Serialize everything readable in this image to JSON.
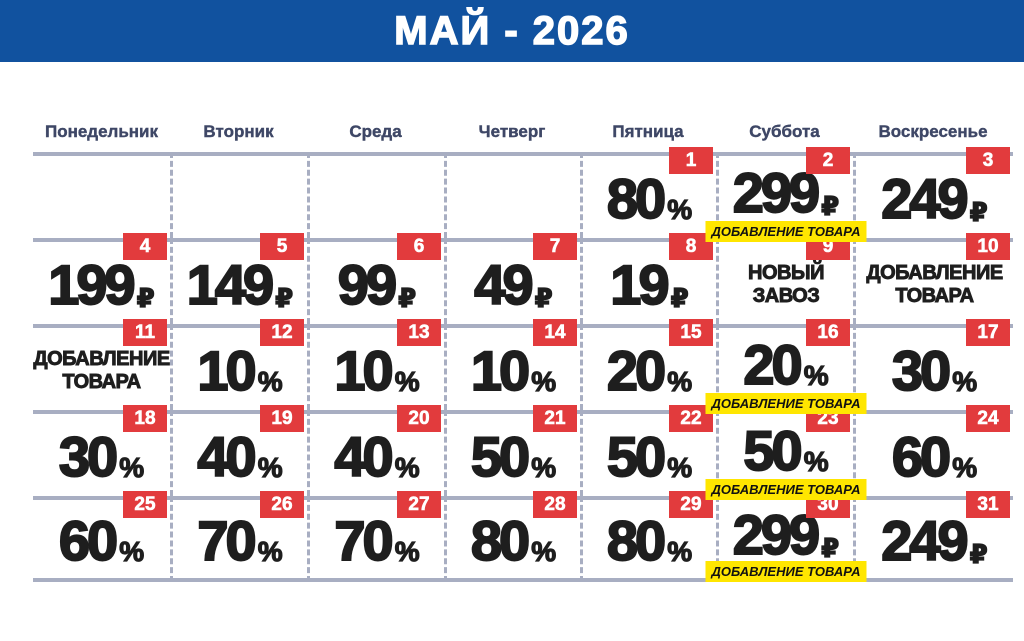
{
  "header": {
    "title": "МАЙ - 2026"
  },
  "weekdays": [
    "Понедельник",
    "Вторник",
    "Среда",
    "Четверг",
    "Пятница",
    "Суббота",
    "Воскресенье"
  ],
  "calendar": {
    "rows": [
      [
        null,
        null,
        null,
        null,
        {
          "day": 1,
          "value": "80",
          "suffix": "%"
        },
        {
          "day": 2,
          "value": "299",
          "suffix": "₽",
          "tag": "ДОБАВЛЕНИЕ ТОВАРА"
        },
        {
          "day": 3,
          "value": "249",
          "suffix": "₽"
        }
      ],
      [
        {
          "day": 4,
          "value": "199",
          "suffix": "₽"
        },
        {
          "day": 5,
          "value": "149",
          "suffix": "₽"
        },
        {
          "day": 6,
          "value": "99",
          "suffix": "₽"
        },
        {
          "day": 7,
          "value": "49",
          "suffix": "₽"
        },
        {
          "day": 8,
          "value": "19",
          "suffix": "₽"
        },
        {
          "day": 9,
          "text": "НОВЫЙ ЗАВОЗ"
        },
        {
          "day": 10,
          "text": "ДОБАВЛЕНИЕ ТОВАРА"
        }
      ],
      [
        {
          "day": 11,
          "text": "ДОБАВЛЕНИЕ ТОВАРА"
        },
        {
          "day": 12,
          "value": "10",
          "suffix": "%"
        },
        {
          "day": 13,
          "value": "10",
          "suffix": "%"
        },
        {
          "day": 14,
          "value": "10",
          "suffix": "%"
        },
        {
          "day": 15,
          "value": "20",
          "suffix": "%"
        },
        {
          "day": 16,
          "value": "20",
          "suffix": "%",
          "tag": "ДОБАВЛЕНИЕ ТОВАРА"
        },
        {
          "day": 17,
          "value": "30",
          "suffix": "%"
        }
      ],
      [
        {
          "day": 18,
          "value": "30",
          "suffix": "%"
        },
        {
          "day": 19,
          "value": "40",
          "suffix": "%"
        },
        {
          "day": 20,
          "value": "40",
          "suffix": "%"
        },
        {
          "day": 21,
          "value": "50",
          "suffix": "%"
        },
        {
          "day": 22,
          "value": "50",
          "suffix": "%"
        },
        {
          "day": 23,
          "value": "50",
          "suffix": "%",
          "tag": "ДОБАВЛЕНИЕ ТОВАРА"
        },
        {
          "day": 24,
          "value": "60",
          "suffix": "%"
        }
      ],
      [
        {
          "day": 25,
          "value": "60",
          "suffix": "%"
        },
        {
          "day": 26,
          "value": "70",
          "suffix": "%"
        },
        {
          "day": 27,
          "value": "70",
          "suffix": "%"
        },
        {
          "day": 28,
          "value": "80",
          "suffix": "%"
        },
        {
          "day": 29,
          "value": "80",
          "suffix": "%"
        },
        {
          "day": 30,
          "value": "299",
          "suffix": "₽",
          "tag": "ДОБАВЛЕНИЕ ТОВАРА"
        },
        {
          "day": 31,
          "value": "249",
          "suffix": "₽"
        }
      ]
    ]
  },
  "colors": {
    "header_bg": "#11529f",
    "badge_red": "#e23b3d",
    "tag_yellow": "#ffe600",
    "grid_line": "#a8aec2",
    "weekday_text": "#3e4766",
    "number_text": "#1e1e1e"
  }
}
